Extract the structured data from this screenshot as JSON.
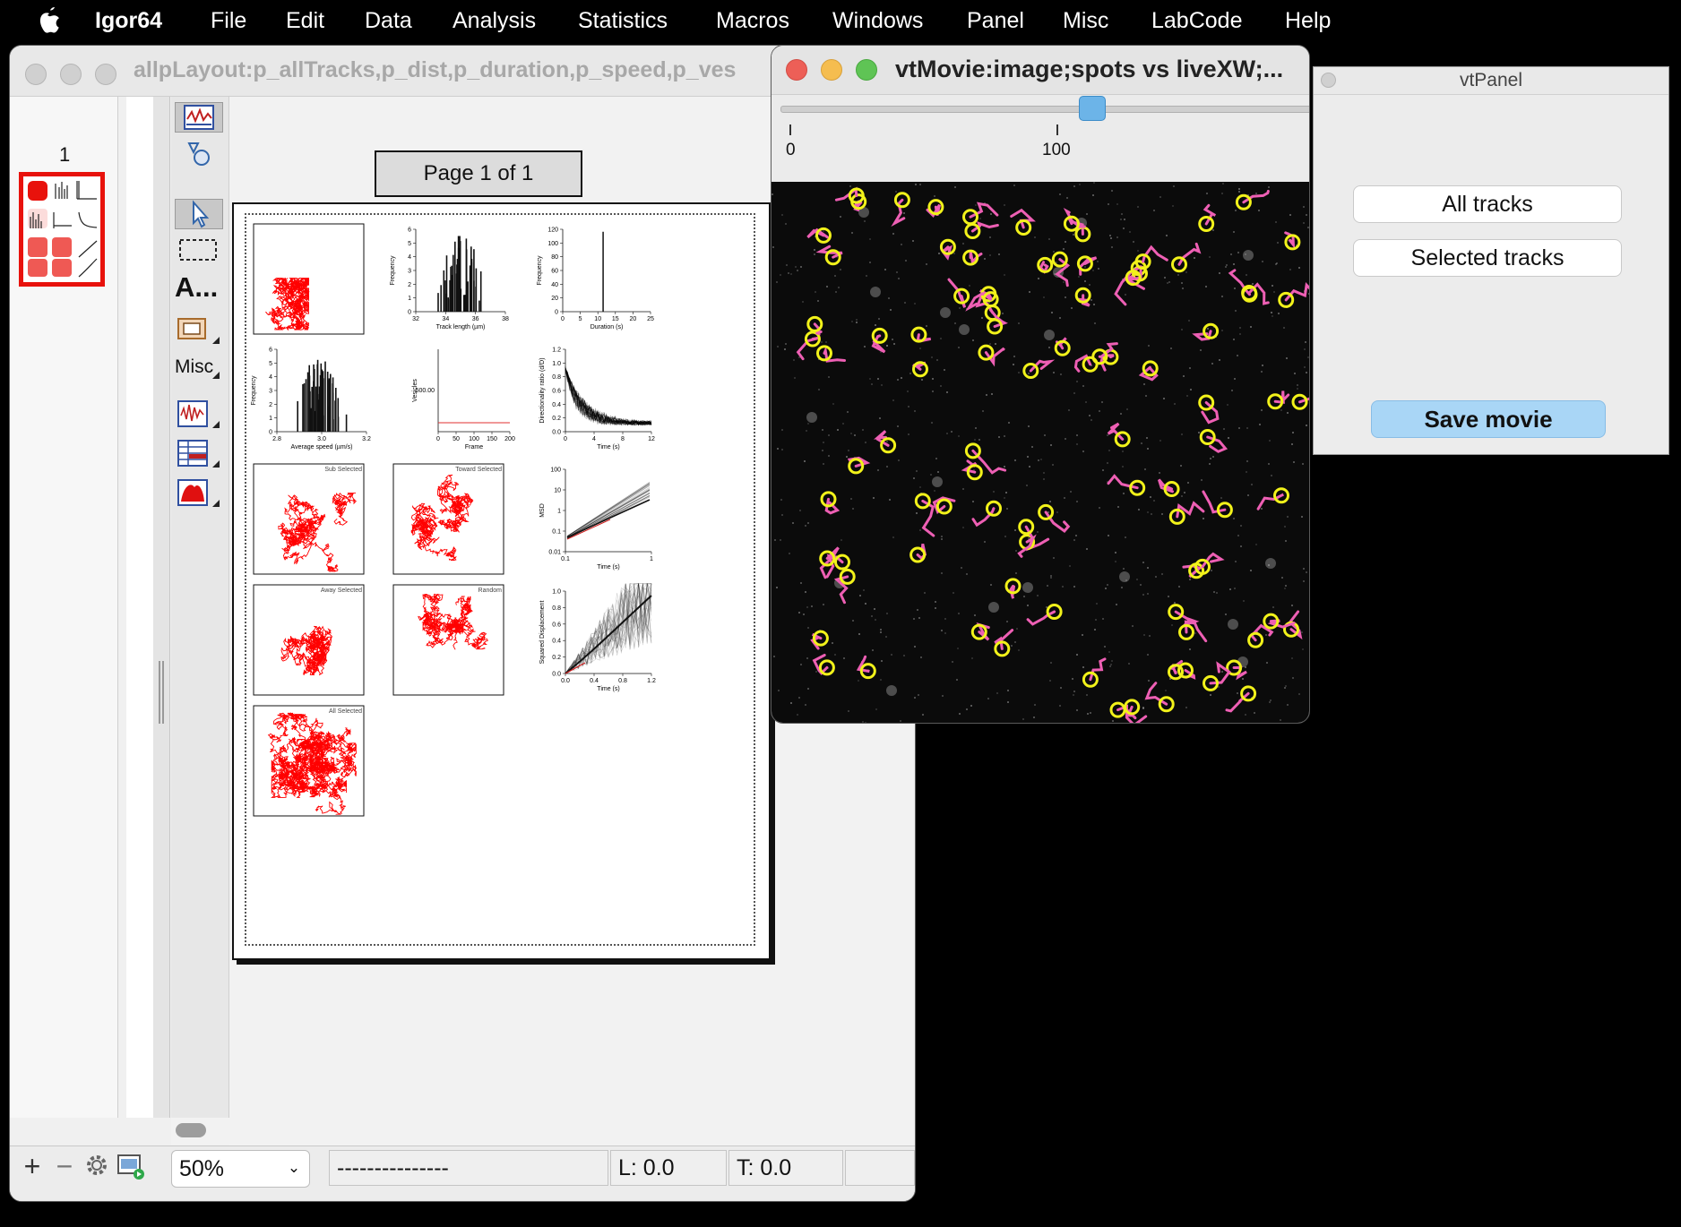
{
  "menubar": {
    "app": "Igor64",
    "items": [
      "File",
      "Edit",
      "Data",
      "Analysis",
      "Statistics",
      "Macros",
      "Windows",
      "Panel",
      "Misc",
      "LabCode",
      "Help"
    ]
  },
  "layout_window": {
    "title": "allpLayout:p_allTracks,p_dist,p_duration,p_speed,p_ves",
    "page_number": "1",
    "page_label": "Page 1 of 1",
    "tools": {
      "text_tool": "A...",
      "misc": "Misc"
    },
    "status": {
      "zoom": "50%",
      "info": "---------------",
      "left": "L: 0.0",
      "top": "T: 0.0"
    },
    "bottom_buttons": [
      "+",
      "−"
    ],
    "figure": {
      "track_length": {
        "xlabel": "Track length (µm)",
        "ylabel": "Frequency",
        "xticks": [
          "32",
          "34",
          "36",
          "38"
        ],
        "yticks": [
          "0",
          "1",
          "2",
          "3",
          "4",
          "5",
          "6"
        ]
      },
      "duration": {
        "xlabel": "Duration (s)",
        "ylabel": "Frequency",
        "xticks": [
          "0",
          "5",
          "10",
          "15",
          "20",
          "25"
        ],
        "yticks": [
          "0",
          "20",
          "40",
          "60",
          "80",
          "100",
          "120"
        ]
      },
      "speed": {
        "xlabel": "Average speed (µm/s)",
        "ylabel": "Frequency",
        "xticks": [
          "2.8",
          "3.0",
          "3.2"
        ],
        "yticks": [
          "0",
          "1",
          "2",
          "3",
          "4",
          "5",
          "6"
        ]
      },
      "vesicles": {
        "xlabel": "Frame",
        "ylabel": "Vesicles",
        "xticks": [
          "0",
          "50",
          "100",
          "150",
          "200"
        ],
        "ytick": "500.00"
      },
      "directionality": {
        "xlabel": "Time (s)",
        "ylabel": "Directionality ratio (d/D)",
        "xticks": [
          "0",
          "4",
          "8",
          "12"
        ],
        "yticks": [
          "0.0",
          "0.2",
          "0.4",
          "0.6",
          "0.8",
          "1.0",
          "1.2"
        ]
      },
      "msd": {
        "xlabel": "Time (s)",
        "ylabel": "MSD",
        "xticks": [
          "0.1",
          "1"
        ],
        "yticks": [
          "0.01",
          "0.1",
          "1",
          "10",
          "100"
        ]
      },
      "sq_disp": {
        "xlabel": "Time (s)",
        "ylabel": "Squared Displacement",
        "xticks": [
          "0.0",
          "0.4",
          "0.8",
          "1.2"
        ],
        "yticks": [
          "0.0",
          "0.2",
          "0.4",
          "0.6",
          "0.8",
          "1.0"
        ]
      },
      "panel_labels": {
        "p1": "Sub Selected",
        "p2": "Toward Selected",
        "p3": "Away Selected",
        "p4": "Random",
        "p5": "All Selected"
      }
    }
  },
  "movie_window": {
    "title": "vtMovie:image;spots vs liveXW;...",
    "slider_ticks": [
      "0",
      "100"
    ],
    "slider_value_fraction": 0.57
  },
  "panel_window": {
    "title": "vtPanel",
    "buttons": [
      "All tracks",
      "Selected tracks"
    ],
    "save_button": "Save movie"
  },
  "colors": {
    "track_red": "#ff0000",
    "spot_yellow": "#f2f21a",
    "track_pink": "#ee5fb4",
    "save_blue": "#a9d6f6"
  }
}
